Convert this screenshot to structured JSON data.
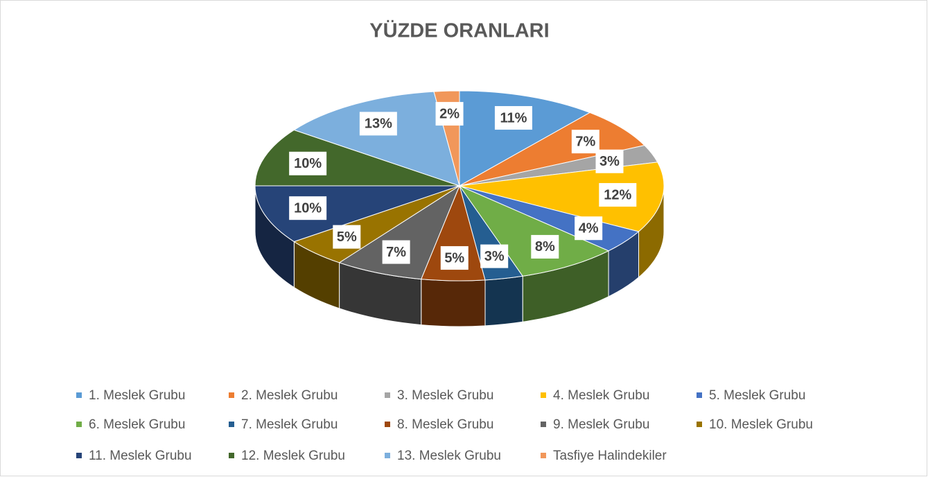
{
  "chart_data": {
    "type": "pie3d",
    "title": "YÜZDE ORANLARI",
    "categories": [
      "1. Meslek Grubu",
      "2. Meslek Grubu",
      "3. Meslek Grubu",
      "4. Meslek Grubu",
      "5. Meslek Grubu",
      "6. Meslek Grubu",
      "7. Meslek Grubu",
      "8. Meslek Grubu",
      "9. Meslek Grubu",
      "10. Meslek Grubu",
      "11. Meslek Grubu",
      "12. Meslek Grubu",
      "13. Meslek Grubu",
      "Tasfiye Halindekiler"
    ],
    "values": [
      11,
      7,
      3,
      12,
      4,
      8,
      3,
      5,
      7,
      5,
      10,
      10,
      13,
      2
    ],
    "value_labels": [
      "11%",
      "7%",
      "3%",
      "12%",
      "4%",
      "8%",
      "3%",
      "5%",
      "7%",
      "5%",
      "10%",
      "10%",
      "13%",
      "2%"
    ],
    "colors": [
      "#5B9BD5",
      "#ED7D31",
      "#A5A5A5",
      "#FFC000",
      "#4472C4",
      "#70AD47",
      "#255E91",
      "#9E480E",
      "#636363",
      "#997300",
      "#264478",
      "#43682B",
      "#7CAFDD",
      "#F1975A"
    ],
    "legend": "bottom"
  }
}
